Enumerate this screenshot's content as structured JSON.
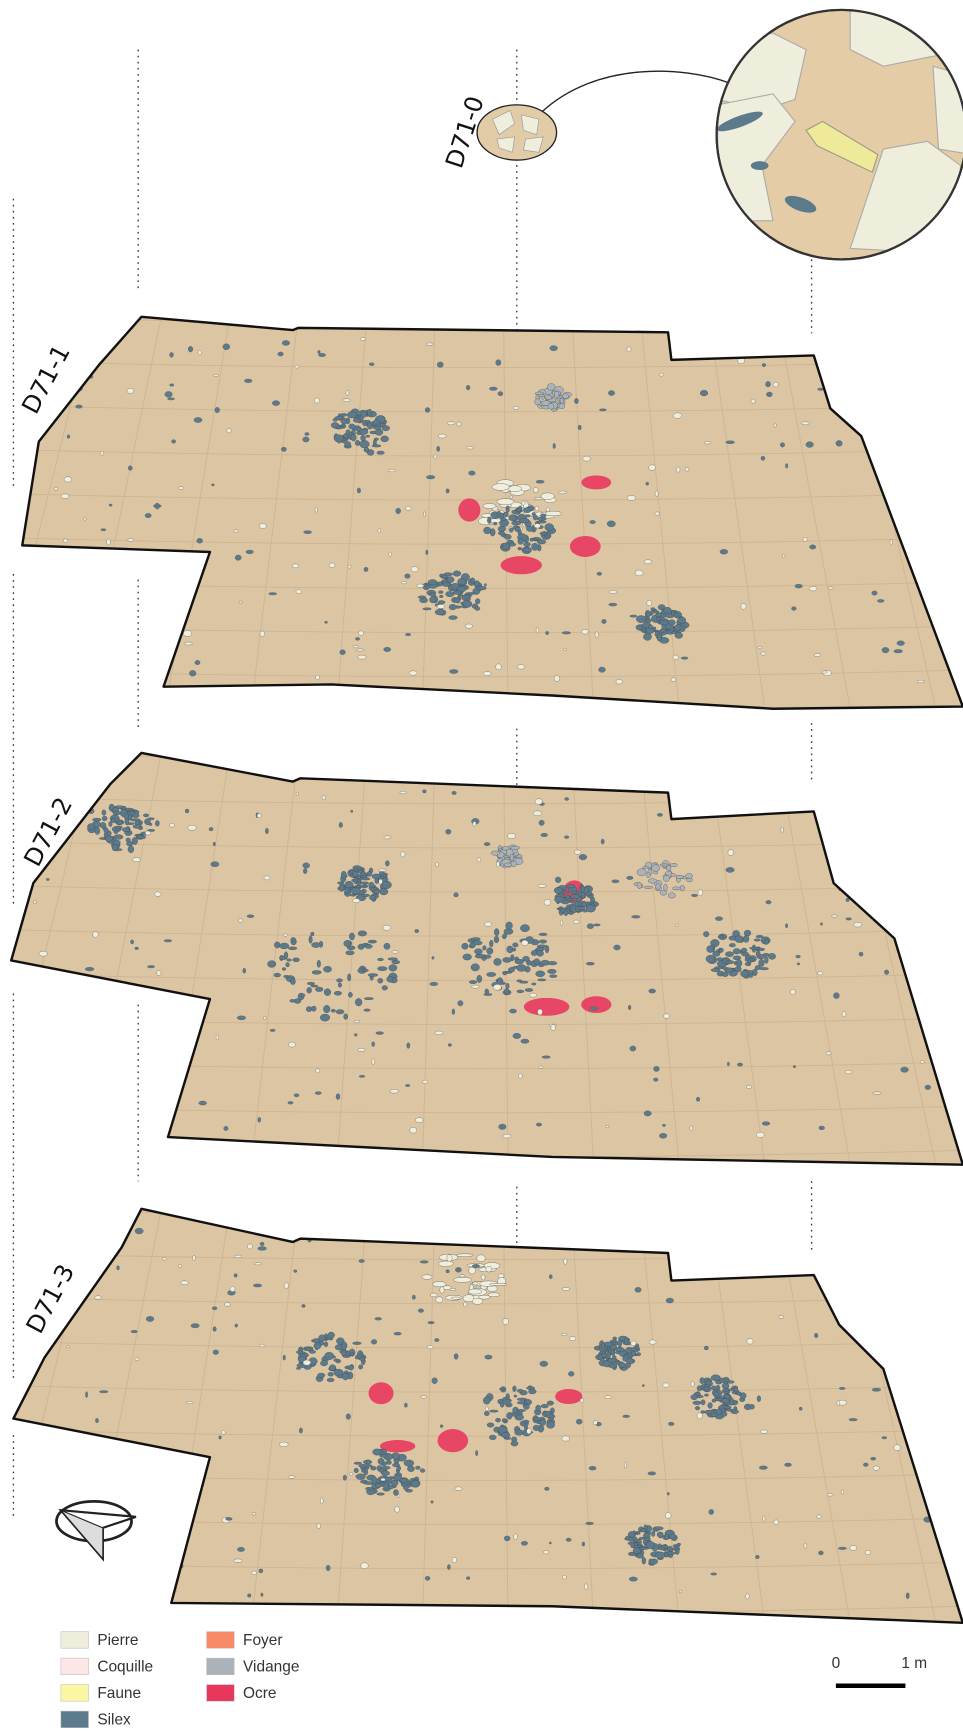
{
  "labels": [
    "D71-0",
    "D71-1",
    "D71-2",
    "D71-3"
  ],
  "legend": [
    {
      "label": "Pierre",
      "color": "#efeedd"
    },
    {
      "label": "Coquille",
      "color": "#fde6e6"
    },
    {
      "label": "Faune",
      "color": "#fbf6a2"
    },
    {
      "label": "Silex",
      "color": "#5b7a8b"
    },
    {
      "label": "Foyer",
      "color": "#f98a68"
    },
    {
      "label": "Vidange",
      "color": "#a9b3b9"
    },
    {
      "label": "Ocre",
      "color": "#e8375d"
    }
  ],
  "scale": {
    "start": "0",
    "end": "1 m"
  }
}
